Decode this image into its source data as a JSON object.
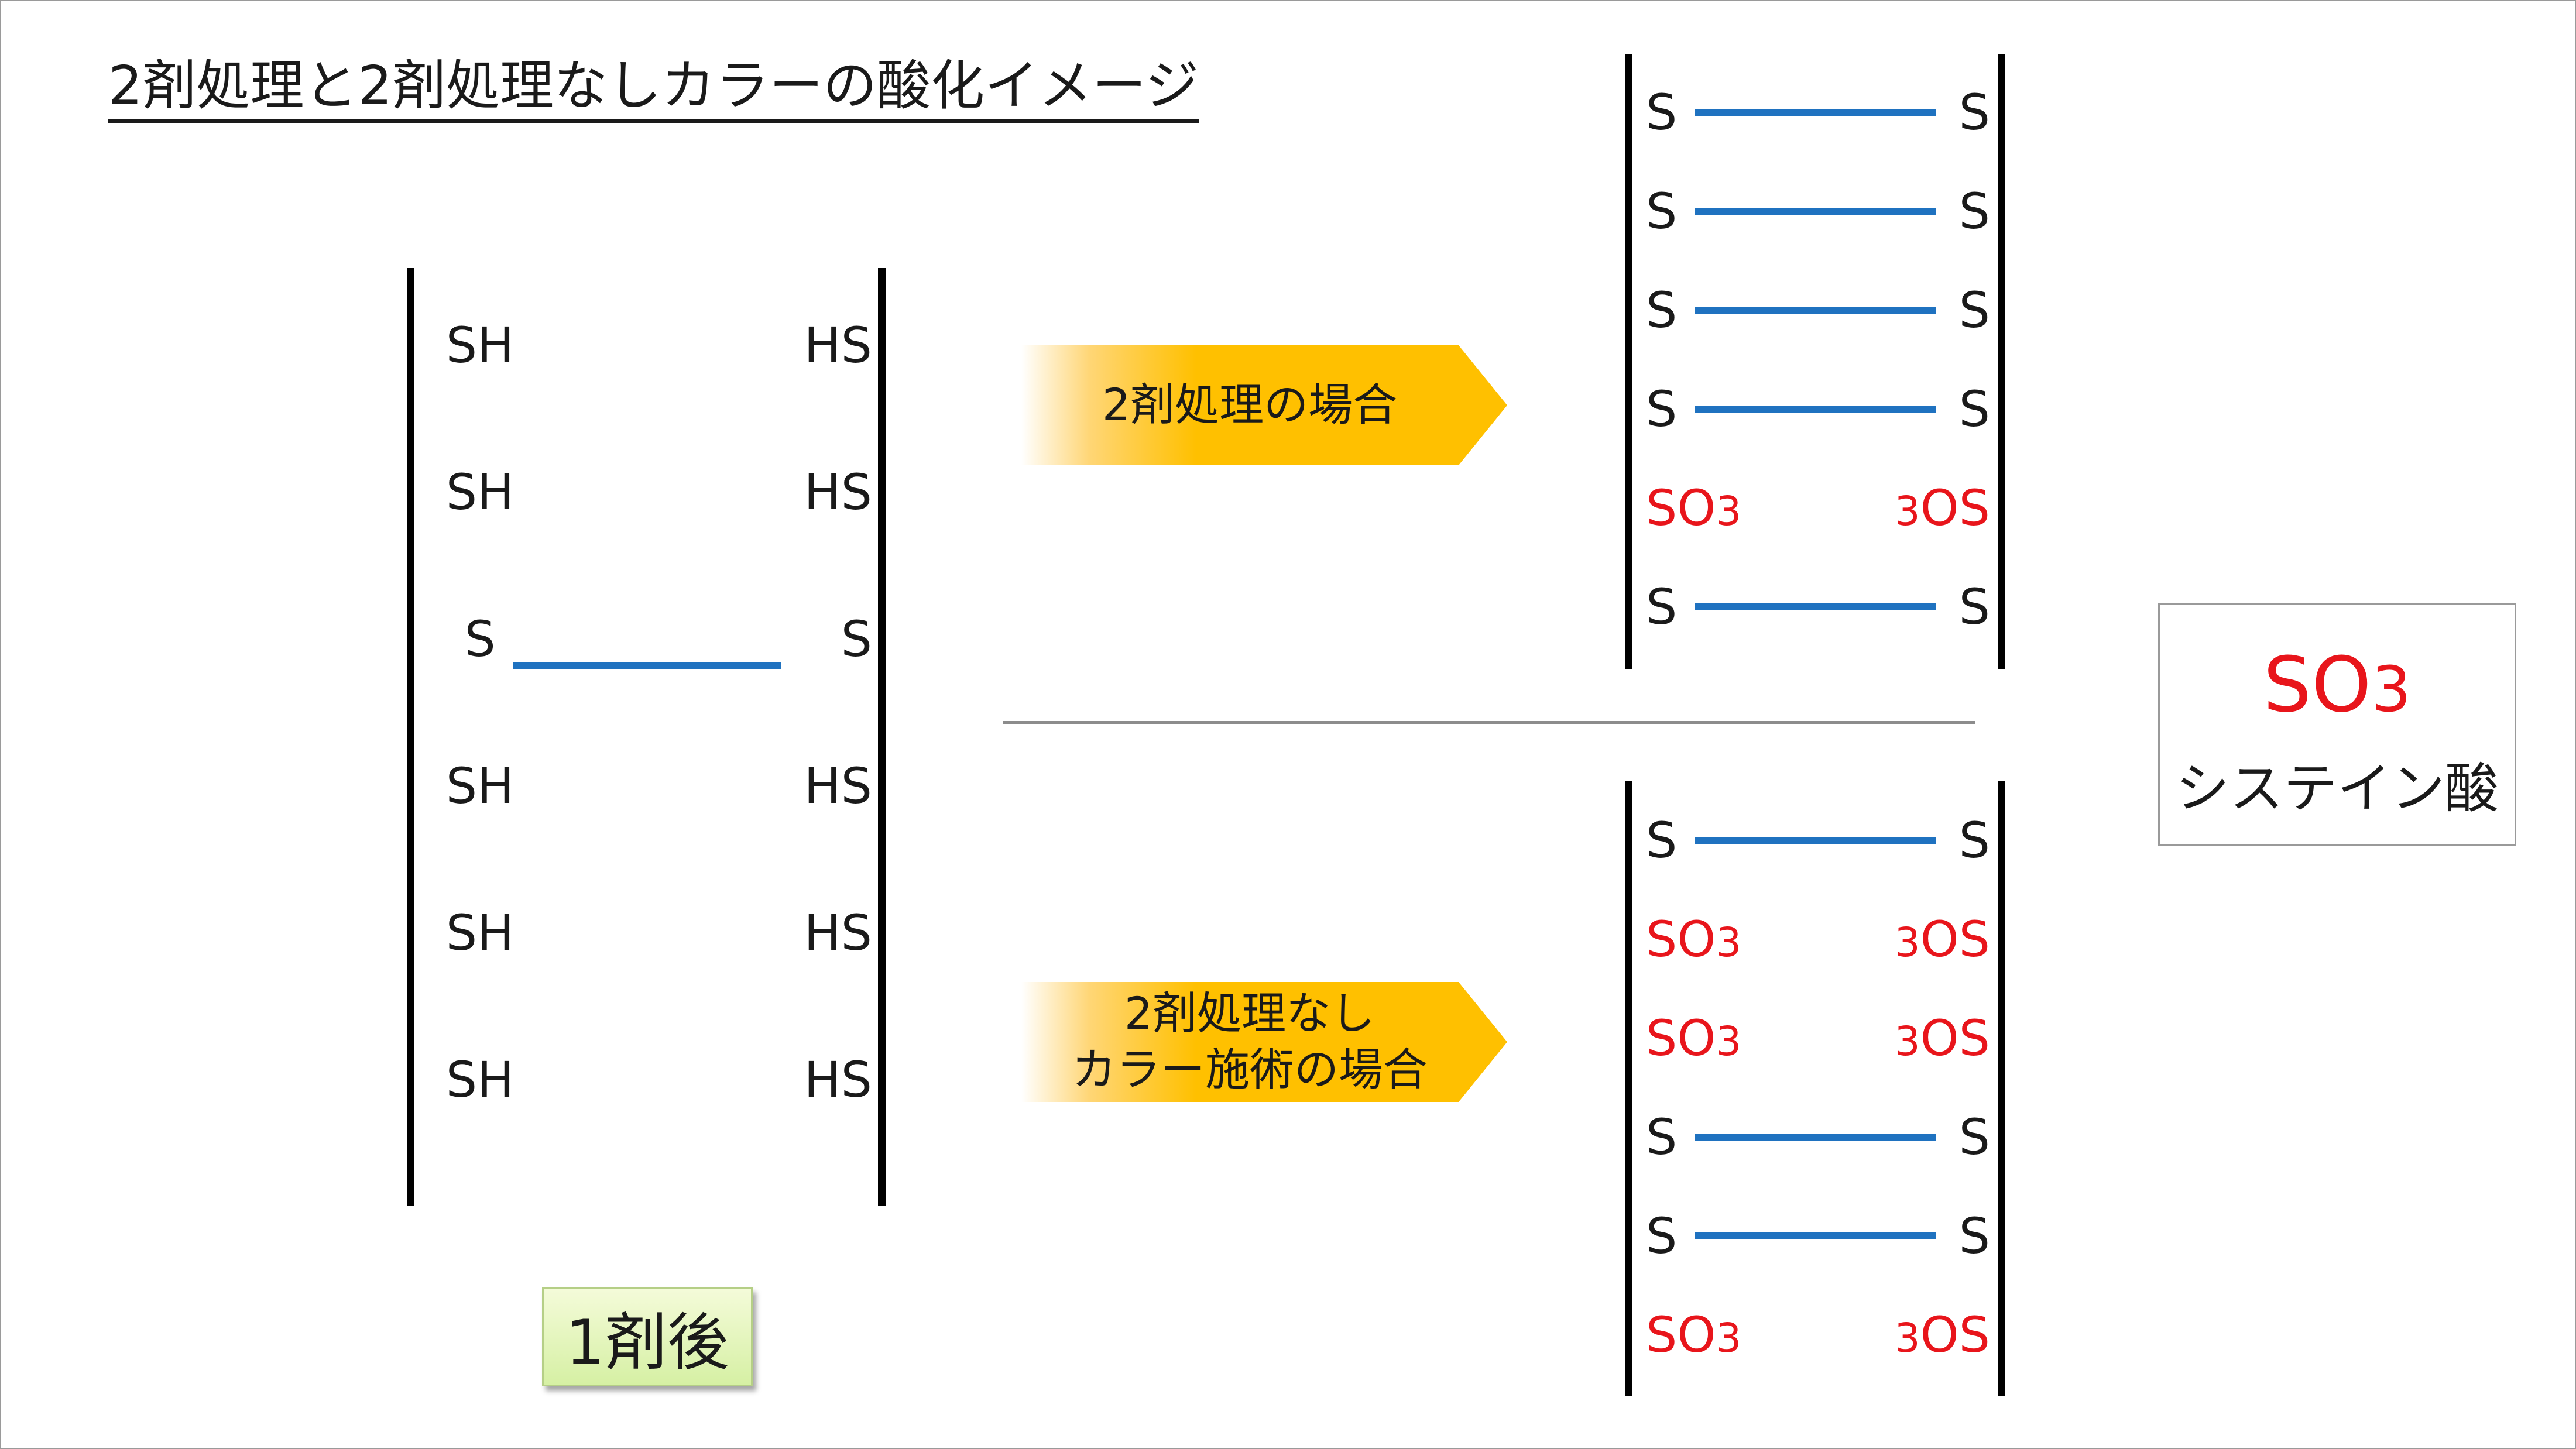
{
  "title": "2剤処理と2剤処理なしカラーの酸化イメージ",
  "badge_label": "1剤後",
  "arrows": {
    "top_label": "2剤処理の場合",
    "bottom_line1": "2剤処理なし",
    "bottom_line2": "カラー施術の場合"
  },
  "legend": {
    "formula_main": "SO",
    "formula_sub": "3",
    "name": "システイン酸"
  },
  "left_ladder": [
    {
      "left": "SH",
      "right": "HS",
      "bond": false
    },
    {
      "left": "SH",
      "right": "HS",
      "bond": false
    },
    {
      "left": "S",
      "right": "S",
      "bond": true
    },
    {
      "left": "SH",
      "right": "HS",
      "bond": false
    },
    {
      "left": "SH",
      "right": "HS",
      "bond": false
    },
    {
      "left": "SH",
      "right": "HS",
      "bond": false
    }
  ],
  "top_ladder": [
    {
      "state": "bond",
      "left": "S",
      "right": "S"
    },
    {
      "state": "bond",
      "left": "S",
      "right": "S"
    },
    {
      "state": "bond",
      "left": "S",
      "right": "S"
    },
    {
      "state": "bond",
      "left": "S",
      "right": "S"
    },
    {
      "state": "oxidized",
      "left_main": "SO",
      "left_sub": "3",
      "right_sub": "3",
      "right_main": "OS"
    },
    {
      "state": "bond",
      "left": "S",
      "right": "S"
    }
  ],
  "bottom_ladder": [
    {
      "state": "bond",
      "left": "S",
      "right": "S"
    },
    {
      "state": "oxidized",
      "left_main": "SO",
      "left_sub": "3",
      "right_sub": "3",
      "right_main": "OS"
    },
    {
      "state": "oxidized",
      "left_main": "SO",
      "left_sub": "3",
      "right_sub": "3",
      "right_main": "OS"
    },
    {
      "state": "bond",
      "left": "S",
      "right": "S"
    },
    {
      "state": "bond",
      "left": "S",
      "right": "S"
    },
    {
      "state": "oxidized",
      "left_main": "SO",
      "left_sub": "3",
      "right_sub": "3",
      "right_main": "OS"
    }
  ],
  "colors": {
    "bond": "#1f72c0",
    "oxidized": "#e8151b",
    "arrow": "#ffc000",
    "badge": "#d6f0a4"
  }
}
